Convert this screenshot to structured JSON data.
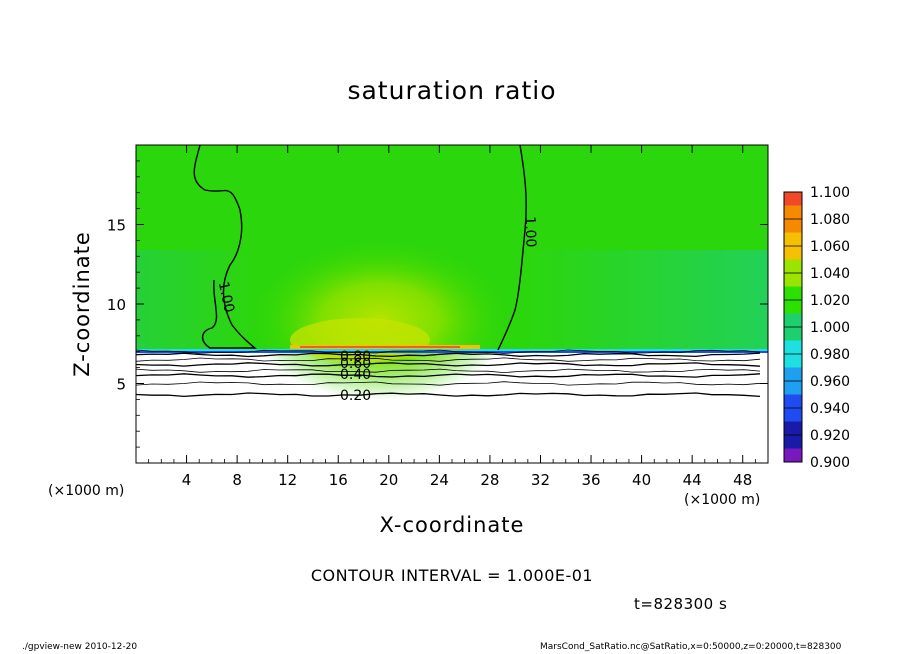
{
  "chart_data": {
    "type": "heatmap",
    "title": "saturation ratio",
    "xlabel": "X-coordinate",
    "ylabel": "Z-coordinate",
    "x_unit": "(×1000 m)",
    "xlim": [
      0,
      50
    ],
    "ylim": [
      0,
      20
    ],
    "x_ticks": [
      4,
      8,
      12,
      16,
      20,
      24,
      28,
      32,
      36,
      40,
      44,
      48
    ],
    "y_ticks": [
      5,
      10,
      15
    ],
    "colorbar": {
      "levels": [
        "0.900",
        "0.920",
        "0.940",
        "0.960",
        "0.980",
        "1.000",
        "1.020",
        "1.040",
        "1.060",
        "1.080",
        "1.100"
      ],
      "colors": [
        "#7a18c0",
        "#1a1aa8",
        "#1e4cf0",
        "#1f9ff0",
        "#1ee0e0",
        "#1ecf6e",
        "#2ce000",
        "#9ae400",
        "#f5c000",
        "#f58a00",
        "#f04828",
        "#f59aa0"
      ]
    },
    "contour_interval": "1.000E-01",
    "contour_labels": [
      "1.00",
      "1.00",
      "0.80",
      "0.60",
      "0.40",
      "0.20"
    ],
    "contours": [
      {
        "level": 0.2,
        "z": 4.3
      },
      {
        "level": 0.3,
        "z": 5.0
      },
      {
        "level": 0.4,
        "z": 5.5
      },
      {
        "level": 0.5,
        "z": 5.8
      },
      {
        "level": 0.6,
        "z": 6.2
      },
      {
        "level": 0.7,
        "z": 6.5
      },
      {
        "level": 0.8,
        "z": 6.8
      },
      {
        "level": 0.9,
        "z": 7.0
      }
    ],
    "time": "t=828300 s"
  },
  "footer": {
    "left": "./gpview-new   2010-12-20",
    "right": "MarsCond_SatRatio.nc@SatRatio,x=0:50000,z=0:20000,t=828300"
  }
}
